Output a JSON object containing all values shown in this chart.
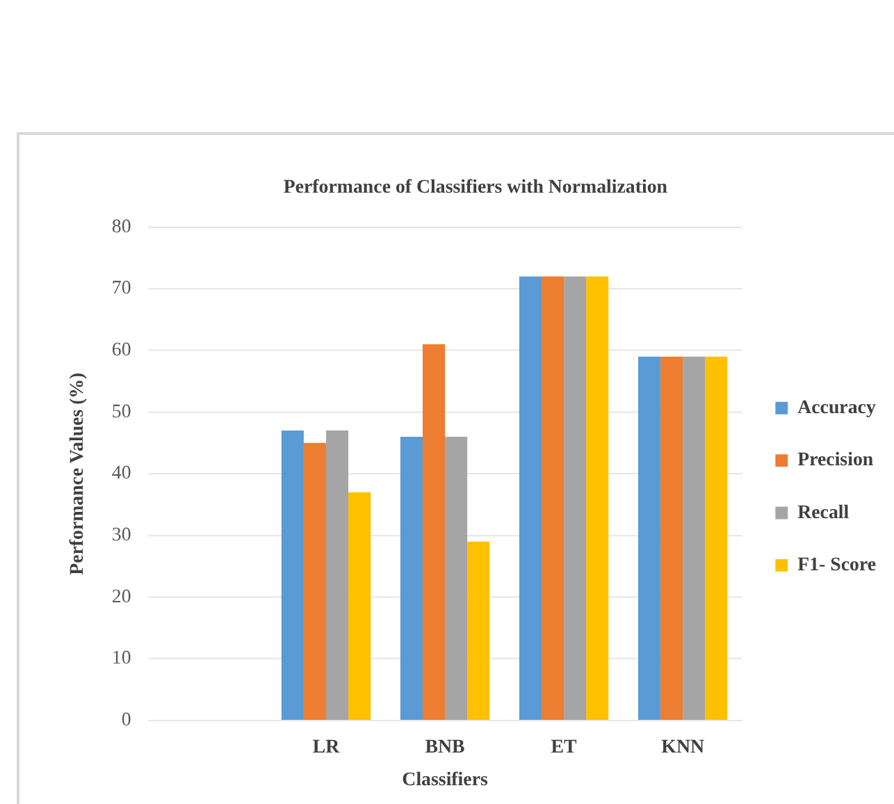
{
  "chart_data": {
    "type": "bar",
    "title": "Performance of Classifiers with Normalization",
    "xlabel": "Classifiers",
    "ylabel": "Performance Values (%)",
    "categories": [
      null,
      "LR",
      "BNB",
      "ET",
      "KNN"
    ],
    "series": [
      {
        "name": "Accuracy",
        "color": "#5b9bd5",
        "values": [
          null,
          47,
          46,
          72,
          59
        ]
      },
      {
        "name": "Precision",
        "color": "#ed7d31",
        "values": [
          null,
          45,
          61,
          72,
          59
        ]
      },
      {
        "name": "Recall",
        "color": "#a5a5a5",
        "values": [
          null,
          47,
          46,
          72,
          59
        ]
      },
      {
        "name": "F1- Score",
        "color": "#ffc000",
        "values": [
          null,
          37,
          29,
          72,
          59
        ]
      }
    ],
    "ylim": [
      0,
      80
    ],
    "yticks": [
      0,
      10,
      20,
      30,
      40,
      50,
      60,
      70,
      80
    ],
    "grid": "y",
    "legend": "right"
  }
}
